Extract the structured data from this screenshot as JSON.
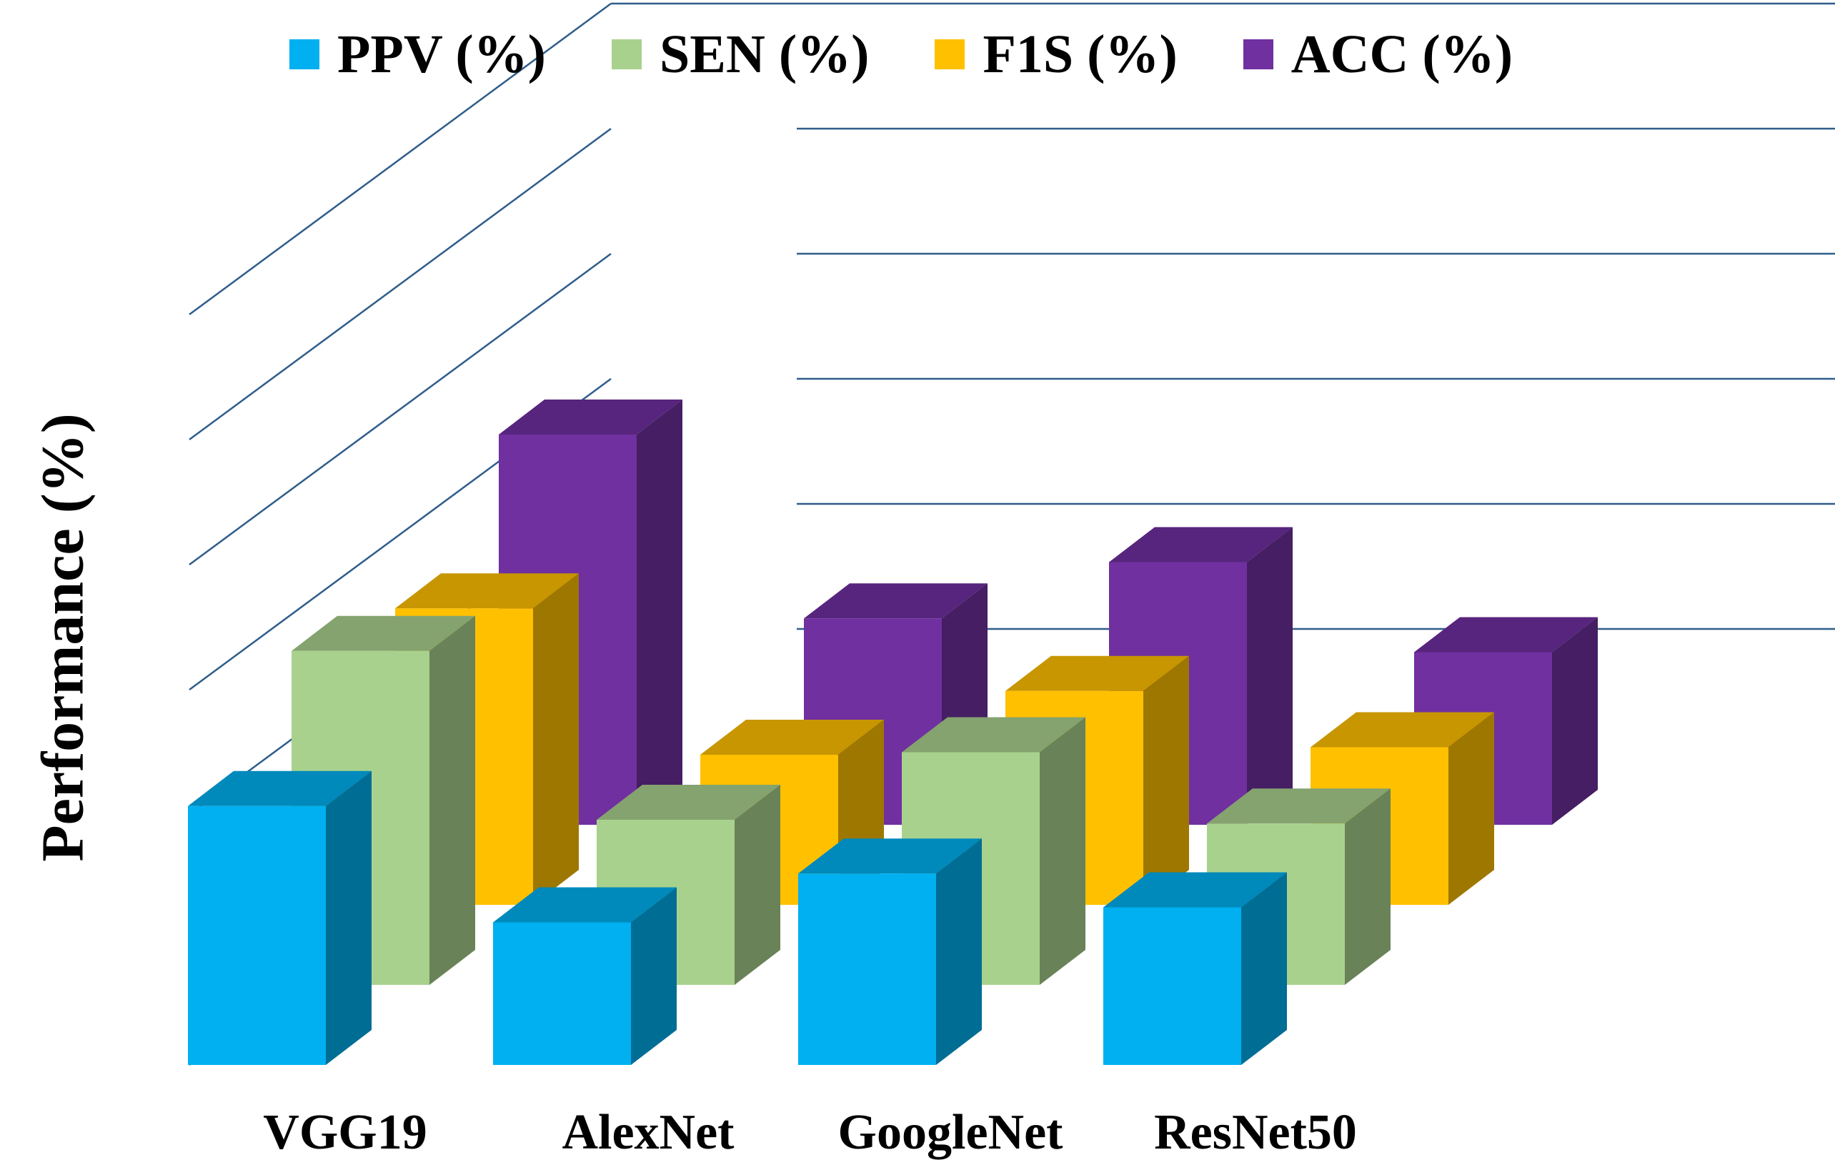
{
  "chart_data": {
    "type": "bar",
    "subtype": "3d-clustered-column",
    "title": "",
    "xlabel": "",
    "ylabel": "Performance (%)",
    "categories": [
      "VGG19",
      "AlexNet",
      "GoogleNet",
      "ResNet50"
    ],
    "series": [
      {
        "name": "PPV (%)",
        "color": "#00b0f0",
        "values": [
          3.45,
          1.9,
          2.55,
          2.1
        ]
      },
      {
        "name": "SEN (%)",
        "color": "#a9d18e",
        "values": [
          4.45,
          2.2,
          3.1,
          2.15
        ]
      },
      {
        "name": "F1S (%)",
        "color": "#ffc000",
        "values": [
          3.95,
          2.0,
          2.85,
          2.1
        ]
      },
      {
        "name": "ACC (%)",
        "color": "#7030a0",
        "values": [
          5.2,
          2.75,
          3.5,
          2.3
        ]
      }
    ],
    "ylim": [
      0,
      7
    ],
    "y_tick_count": 7,
    "tick_labels_visible": false,
    "grid": true,
    "legend": "top"
  }
}
